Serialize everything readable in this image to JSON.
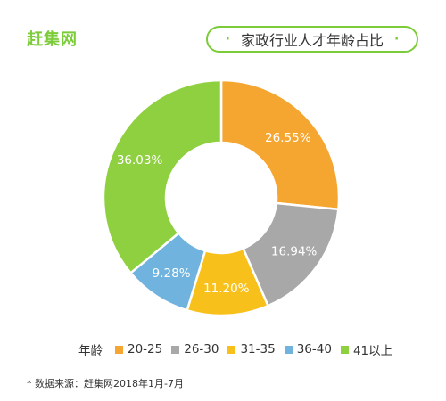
{
  "header": {
    "brand": "赶集网",
    "title_dot_left": "·",
    "title": "家政行业人才年龄占比",
    "title_dot_right": "·"
  },
  "chart_data": {
    "type": "pie",
    "title": "家政行业人才年龄占比",
    "legend_title": "年龄",
    "legend_position": "bottom",
    "donut": true,
    "slices": [
      {
        "label": "20-25",
        "value": 26.55,
        "display": "26.55%",
        "color": "#f5a630"
      },
      {
        "label": "26-30",
        "value": 16.94,
        "display": "16.94%",
        "color": "#a8a8a8"
      },
      {
        "label": "31-35",
        "value": 11.2,
        "display": "11.20%",
        "color": "#f7c01a"
      },
      {
        "label": "36-40",
        "value": 9.28,
        "display": "9.28%",
        "color": "#6fb3de"
      },
      {
        "label": "41以上",
        "value": 36.03,
        "display": "36.03%",
        "color": "#8fd040"
      }
    ]
  },
  "footer": {
    "source": "* 数据来源：赶集网2018年1月-7月"
  }
}
